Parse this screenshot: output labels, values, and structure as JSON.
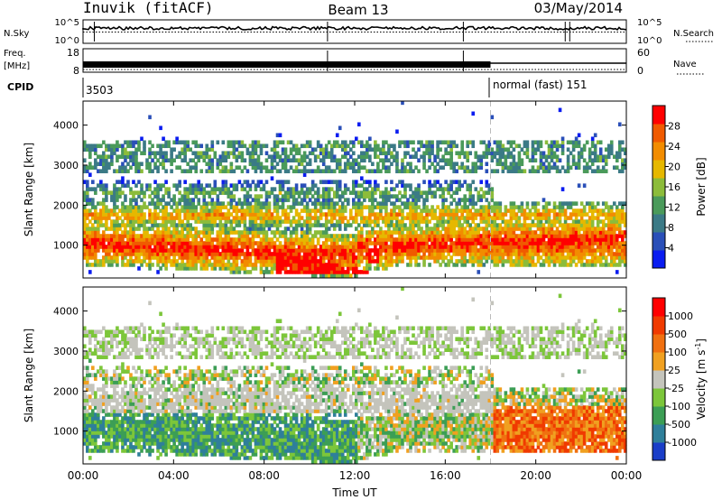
{
  "header": {
    "station": "Inuvik (fitACF)",
    "beam": "Beam 13",
    "date": "03/May/2014"
  },
  "sky_panel": {
    "left_label": "N.Sky",
    "right_label": "N.Search",
    "left_ticks": [
      "10^5",
      "10^0"
    ],
    "right_ticks": [
      "10^5",
      "10^0"
    ]
  },
  "freq_panel": {
    "left_label_1": "Freq.",
    "left_label_2": "[MHz]",
    "right_label": "Nave",
    "left_ticks": [
      "18",
      "8"
    ],
    "right_ticks": [
      "60",
      "0"
    ]
  },
  "cpid": {
    "label": "CPID",
    "first_id": "3503",
    "second_name": "normal (fast) 151"
  },
  "chart_data": [
    {
      "type": "heatmap",
      "title": "",
      "xlabel": "",
      "ylabel": "Slant Range [km]",
      "x_ticks": [
        "00:00",
        "04:00",
        "08:00",
        "12:00",
        "16:00",
        "20:00",
        "00:00"
      ],
      "x_range_hours": [
        0,
        24
      ],
      "y_ticks": [
        1000,
        2000,
        3000,
        4000
      ],
      "ylim": [
        180,
        4600
      ],
      "colorbar": {
        "label": "Power [dB]",
        "ticks": [
          4,
          8,
          12,
          16,
          20,
          24,
          28
        ],
        "range": [
          0,
          30
        ],
        "colors": [
          "#0a1cf0",
          "#2a4fb8",
          "#3b7a86",
          "#4a9a5a",
          "#8cbc3a",
          "#e6b800",
          "#f28c00",
          "#f05a00",
          "#ff0000"
        ]
      },
      "mode_change_hour": 18.0
    },
    {
      "type": "heatmap",
      "title": "",
      "xlabel": "Time UT",
      "ylabel": "Slant Range [km]",
      "x_ticks": [
        "00:00",
        "04:00",
        "08:00",
        "12:00",
        "16:00",
        "20:00",
        "00:00"
      ],
      "x_range_hours": [
        0,
        24
      ],
      "y_ticks": [
        1000,
        2000,
        3000,
        4000
      ],
      "ylim": [
        180,
        4600
      ],
      "colorbar": {
        "label": "Velocity [m s^-1]",
        "ticks": [
          "1000",
          "500",
          "100",
          "25",
          "-25",
          "-100",
          "-500",
          "-1000"
        ],
        "colors": [
          "#1a3ec8",
          "#2f7f9a",
          "#3c9e55",
          "#7cc63a",
          "#c4c4bc",
          "#f0a020",
          "#f07010",
          "#f03a00",
          "#ff0000"
        ]
      },
      "mode_change_hour": 18.0
    }
  ],
  "colors": {
    "axis": "#000000",
    "grid_dash": "#bbbbbb",
    "ground_scatter": "#b8b8b0"
  }
}
